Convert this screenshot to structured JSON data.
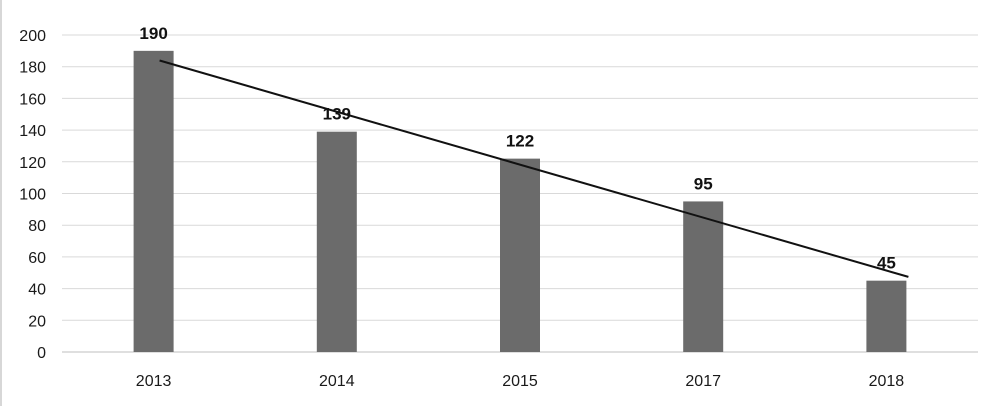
{
  "chart_data": {
    "type": "bar",
    "categories": [
      "2013",
      "2014",
      "2015",
      "2017",
      "2018"
    ],
    "values": [
      190,
      139,
      122,
      95,
      45
    ],
    "data_labels": [
      "190",
      "139",
      "122",
      "95",
      "45"
    ],
    "title": "",
    "xlabel": "",
    "ylabel": "",
    "ylim": [
      0,
      200
    ],
    "yticks": [
      0,
      20,
      40,
      60,
      80,
      100,
      120,
      140,
      160,
      180,
      200
    ],
    "ytick_labels": [
      "0",
      "20",
      "40",
      "60",
      "80",
      "100",
      "120",
      "140",
      "160",
      "180",
      "200"
    ],
    "grid": true,
    "legend": "none",
    "trendline": {
      "type": "linear"
    },
    "colors": {
      "bar": "#6b6b6b",
      "grid": "#d9d9d9",
      "trendline": "#111111",
      "axis": "#bfbfbf"
    }
  }
}
